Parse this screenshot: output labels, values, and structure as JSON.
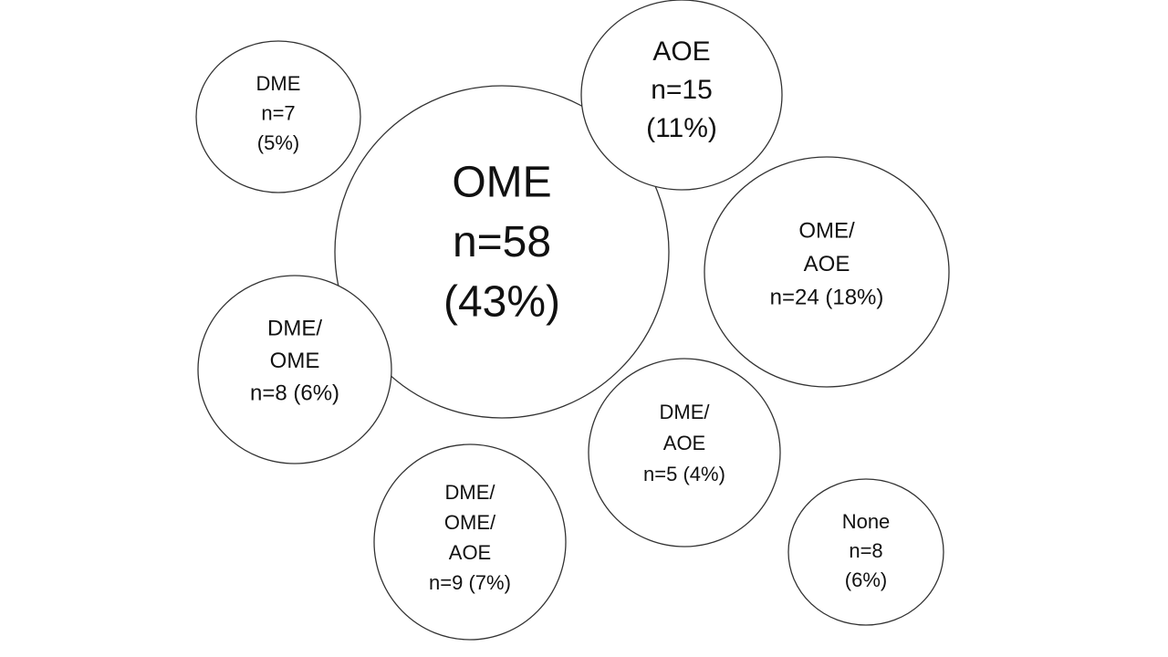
{
  "nodes": [
    {
      "lines": [
        "DME",
        "n=7",
        "(5%)"
      ]
    },
    {
      "lines": [
        "OME",
        "n=58",
        "(43%)"
      ]
    },
    {
      "lines": [
        "AOE",
        "n=15",
        "(11%)"
      ]
    },
    {
      "lines": [
        "OME/",
        "AOE",
        "n=24 (18%)"
      ]
    },
    {
      "lines": [
        "DME/",
        "OME",
        "n=8 (6%)"
      ]
    },
    {
      "lines": [
        "DME/",
        "AOE",
        "n=5 (4%)"
      ]
    },
    {
      "lines": [
        "DME/",
        "OME/",
        "AOE",
        "n=9 (7%)"
      ]
    },
    {
      "lines": [
        "None",
        "n=8",
        "(6%)"
      ]
    }
  ]
}
